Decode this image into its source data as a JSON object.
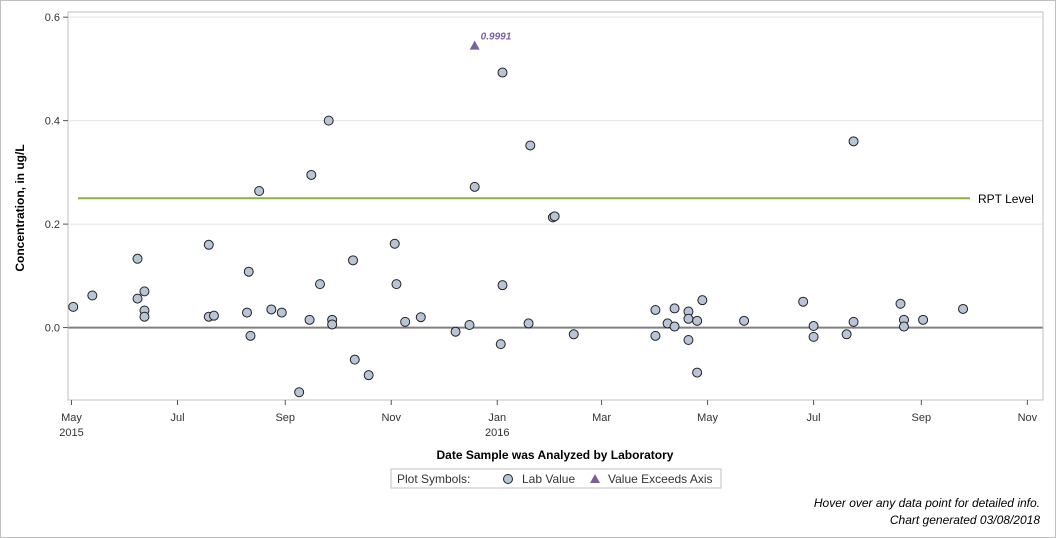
{
  "chart_data": {
    "type": "scatter",
    "xlabel": "Date Sample was Analyzed by Laboratory",
    "ylabel": "Concentration, in ug/L",
    "xlim": [
      "2015-04-29",
      "2016-11-10"
    ],
    "ylim": [
      -0.14,
      0.61
    ],
    "x_ticks": [
      {
        "date": "2015-05-01",
        "label": "May",
        "year": "2015"
      },
      {
        "date": "2015-07-01",
        "label": "Jul",
        "year": ""
      },
      {
        "date": "2015-09-01",
        "label": "Sep",
        "year": ""
      },
      {
        "date": "2015-11-01",
        "label": "Nov",
        "year": ""
      },
      {
        "date": "2016-01-01",
        "label": "Jan",
        "year": "2016"
      },
      {
        "date": "2016-03-01",
        "label": "Mar",
        "year": ""
      },
      {
        "date": "2016-05-01",
        "label": "May",
        "year": ""
      },
      {
        "date": "2016-07-01",
        "label": "Jul",
        "year": ""
      },
      {
        "date": "2016-09-01",
        "label": "Sep",
        "year": ""
      },
      {
        "date": "2016-11-01",
        "label": "Nov",
        "year": ""
      }
    ],
    "y_ticks": [
      {
        "value": 0.0,
        "label": "0.0"
      },
      {
        "value": 0.2,
        "label": "0.2"
      },
      {
        "value": 0.4,
        "label": "0.4"
      },
      {
        "value": 0.6,
        "label": "0.6"
      }
    ],
    "grid": true,
    "zero_line": 0.0,
    "reference_line": {
      "label": "RPT Level",
      "value": 0.25,
      "color": "#8cb040"
    },
    "series": [
      {
        "name": "Lab Value",
        "marker": "circle",
        "color": "#b8c4d8",
        "points": [
          {
            "x": "2015-05-02",
            "y": 0.04
          },
          {
            "x": "2015-05-13",
            "y": 0.062
          },
          {
            "x": "2015-06-08",
            "y": 0.133
          },
          {
            "x": "2015-06-08",
            "y": 0.056
          },
          {
            "x": "2015-06-12",
            "y": 0.07
          },
          {
            "x": "2015-06-12",
            "y": 0.033
          },
          {
            "x": "2015-06-12",
            "y": 0.021
          },
          {
            "x": "2015-07-19",
            "y": 0.16
          },
          {
            "x": "2015-07-19",
            "y": 0.021
          },
          {
            "x": "2015-07-22",
            "y": 0.023
          },
          {
            "x": "2015-08-11",
            "y": 0.108
          },
          {
            "x": "2015-08-10",
            "y": 0.029
          },
          {
            "x": "2015-08-12",
            "y": -0.016
          },
          {
            "x": "2015-08-17",
            "y": 0.264
          },
          {
            "x": "2015-08-24",
            "y": 0.035
          },
          {
            "x": "2015-08-30",
            "y": 0.029
          },
          {
            "x": "2015-09-09",
            "y": -0.125
          },
          {
            "x": "2015-09-15",
            "y": 0.015
          },
          {
            "x": "2015-09-16",
            "y": 0.295
          },
          {
            "x": "2015-09-21",
            "y": 0.084
          },
          {
            "x": "2015-09-26",
            "y": 0.4
          },
          {
            "x": "2015-09-28",
            "y": 0.015
          },
          {
            "x": "2015-09-28",
            "y": 0.006
          },
          {
            "x": "2015-10-10",
            "y": 0.13
          },
          {
            "x": "2015-10-11",
            "y": -0.062
          },
          {
            "x": "2015-10-19",
            "y": -0.092
          },
          {
            "x": "2015-11-03",
            "y": 0.162
          },
          {
            "x": "2015-11-04",
            "y": 0.084
          },
          {
            "x": "2015-11-09",
            "y": 0.011
          },
          {
            "x": "2015-11-18",
            "y": 0.02
          },
          {
            "x": "2015-12-08",
            "y": -0.008
          },
          {
            "x": "2015-12-16",
            "y": 0.005
          },
          {
            "x": "2015-12-19",
            "y": 0.272
          },
          {
            "x": "2016-01-04",
            "y": 0.493
          },
          {
            "x": "2016-01-04",
            "y": 0.082
          },
          {
            "x": "2016-01-03",
            "y": -0.032
          },
          {
            "x": "2016-01-19",
            "y": 0.008
          },
          {
            "x": "2016-01-20",
            "y": 0.352
          },
          {
            "x": "2016-02-02",
            "y": 0.213
          },
          {
            "x": "2016-02-03",
            "y": 0.215
          },
          {
            "x": "2016-02-14",
            "y": -0.013
          },
          {
            "x": "2016-04-01",
            "y": 0.034
          },
          {
            "x": "2016-04-01",
            "y": -0.016
          },
          {
            "x": "2016-04-08",
            "y": 0.008
          },
          {
            "x": "2016-04-12",
            "y": 0.037
          },
          {
            "x": "2016-04-12",
            "y": 0.002
          },
          {
            "x": "2016-04-20",
            "y": 0.031
          },
          {
            "x": "2016-04-20",
            "y": 0.017
          },
          {
            "x": "2016-04-20",
            "y": -0.024
          },
          {
            "x": "2016-04-25",
            "y": 0.013
          },
          {
            "x": "2016-04-25",
            "y": -0.087
          },
          {
            "x": "2016-04-28",
            "y": 0.053
          },
          {
            "x": "2016-05-22",
            "y": 0.013
          },
          {
            "x": "2016-06-25",
            "y": 0.05
          },
          {
            "x": "2016-07-01",
            "y": 0.003
          },
          {
            "x": "2016-07-01",
            "y": -0.018
          },
          {
            "x": "2016-07-20",
            "y": -0.013
          },
          {
            "x": "2016-07-24",
            "y": 0.36
          },
          {
            "x": "2016-07-24",
            "y": 0.011
          },
          {
            "x": "2016-08-20",
            "y": 0.046
          },
          {
            "x": "2016-08-22",
            "y": 0.015
          },
          {
            "x": "2016-08-22",
            "y": 0.002
          },
          {
            "x": "2016-09-02",
            "y": 0.015
          },
          {
            "x": "2016-09-25",
            "y": 0.036
          }
        ]
      },
      {
        "name": "Value Exceeds Axis",
        "marker": "triangle",
        "color": "#7a5fa0",
        "points": [
          {
            "x": "2015-12-19",
            "y": 0.545,
            "actual": 0.9991,
            "label": "0.9991"
          }
        ]
      }
    ]
  },
  "legend": {
    "title": "Plot Symbols:",
    "items": [
      {
        "label": "Lab Value",
        "symbol": "circle",
        "color": "#b8c4d8"
      },
      {
        "label": "Value Exceeds Axis",
        "symbol": "triangle",
        "color": "#7a5fa0"
      }
    ]
  },
  "footnotes": {
    "hover": "Hover over any data point for detailed info.",
    "generated": "Chart generated 03/08/2018"
  }
}
